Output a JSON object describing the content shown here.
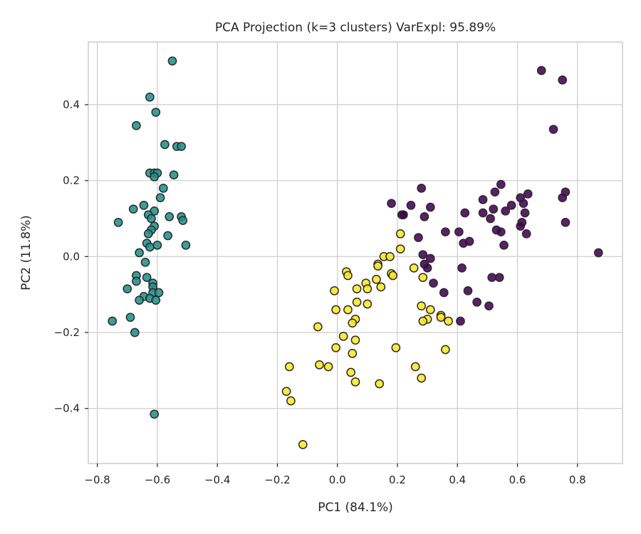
{
  "chart_data": {
    "type": "scatter",
    "title": "PCA Projection (k=3 clusters) VarExpl: 95.89%",
    "xlabel": "PC1 (84.1%)",
    "ylabel": "PC2 (11.8%)",
    "xlim": [
      -0.83,
      0.95
    ],
    "ylim": [
      -0.545,
      0.565
    ],
    "xticks": [
      -0.8,
      -0.6,
      -0.4,
      -0.2,
      0.0,
      0.2,
      0.4,
      0.6,
      0.8
    ],
    "xtick_labels": [
      "−0.8",
      "−0.6",
      "−0.4",
      "−0.2",
      "0.0",
      "0.2",
      "0.4",
      "0.6",
      "0.8"
    ],
    "yticks": [
      0.4,
      0.2,
      0.0,
      -0.2,
      -0.4
    ],
    "ytick_labels": [
      "0.4",
      "0.2",
      "0.0",
      "−0.2",
      "−0.4"
    ],
    "grid": true,
    "colors": {
      "cluster0": "#440154",
      "cluster1": "#21918c",
      "cluster2": "#fde725"
    },
    "series": [
      {
        "color_key": "cluster0",
        "points": [
          [
            0.68,
            0.49
          ],
          [
            0.75,
            0.465
          ],
          [
            0.72,
            0.335
          ],
          [
            0.87,
            0.01
          ],
          [
            0.545,
            0.19
          ],
          [
            0.525,
            0.17
          ],
          [
            0.635,
            0.165
          ],
          [
            0.76,
            0.17
          ],
          [
            0.61,
            0.155
          ],
          [
            0.75,
            0.155
          ],
          [
            0.62,
            0.14
          ],
          [
            0.485,
            0.15
          ],
          [
            0.58,
            0.135
          ],
          [
            0.28,
            0.18
          ],
          [
            0.18,
            0.14
          ],
          [
            0.245,
            0.135
          ],
          [
            0.31,
            0.13
          ],
          [
            0.52,
            0.125
          ],
          [
            0.56,
            0.12
          ],
          [
            0.215,
            0.11
          ],
          [
            0.22,
            0.11
          ],
          [
            0.29,
            0.105
          ],
          [
            0.425,
            0.115
          ],
          [
            0.485,
            0.115
          ],
          [
            0.625,
            0.115
          ],
          [
            0.51,
            0.1
          ],
          [
            0.615,
            0.09
          ],
          [
            0.61,
            0.08
          ],
          [
            0.76,
            0.09
          ],
          [
            0.53,
            0.07
          ],
          [
            0.545,
            0.065
          ],
          [
            0.36,
            0.065
          ],
          [
            0.405,
            0.065
          ],
          [
            0.63,
            0.06
          ],
          [
            0.27,
            0.05
          ],
          [
            0.44,
            0.04
          ],
          [
            0.42,
            0.035
          ],
          [
            0.555,
            0.03
          ],
          [
            0.285,
            0.005
          ],
          [
            0.31,
            -0.005
          ],
          [
            0.29,
            -0.02
          ],
          [
            0.3,
            -0.03
          ],
          [
            0.415,
            -0.03
          ],
          [
            0.515,
            -0.055
          ],
          [
            0.54,
            -0.055
          ],
          [
            0.32,
            -0.07
          ],
          [
            0.355,
            -0.095
          ],
          [
            0.435,
            -0.09
          ],
          [
            0.465,
            -0.12
          ],
          [
            0.505,
            -0.13
          ],
          [
            0.41,
            -0.17
          ]
        ]
      },
      {
        "color_key": "cluster1",
        "points": [
          [
            -0.55,
            0.515
          ],
          [
            -0.625,
            0.42
          ],
          [
            -0.605,
            0.38
          ],
          [
            -0.67,
            0.345
          ],
          [
            -0.575,
            0.295
          ],
          [
            -0.535,
            0.29
          ],
          [
            -0.52,
            0.29
          ],
          [
            -0.625,
            0.22
          ],
          [
            -0.61,
            0.22
          ],
          [
            -0.6,
            0.22
          ],
          [
            -0.545,
            0.215
          ],
          [
            -0.61,
            0.21
          ],
          [
            -0.58,
            0.18
          ],
          [
            -0.59,
            0.155
          ],
          [
            -0.645,
            0.135
          ],
          [
            -0.68,
            0.125
          ],
          [
            -0.61,
            0.12
          ],
          [
            -0.63,
            0.11
          ],
          [
            -0.56,
            0.105
          ],
          [
            -0.52,
            0.105
          ],
          [
            -0.62,
            0.1
          ],
          [
            -0.73,
            0.09
          ],
          [
            -0.515,
            0.095
          ],
          [
            -0.61,
            0.08
          ],
          [
            -0.62,
            0.07
          ],
          [
            -0.63,
            0.06
          ],
          [
            -0.565,
            0.055
          ],
          [
            -0.635,
            0.035
          ],
          [
            -0.625,
            0.025
          ],
          [
            -0.6,
            0.03
          ],
          [
            -0.505,
            0.03
          ],
          [
            -0.66,
            0.01
          ],
          [
            -0.64,
            -0.015
          ],
          [
            -0.67,
            -0.05
          ],
          [
            -0.635,
            -0.055
          ],
          [
            -0.615,
            -0.07
          ],
          [
            -0.67,
            -0.065
          ],
          [
            -0.615,
            -0.08
          ],
          [
            -0.7,
            -0.085
          ],
          [
            -0.615,
            -0.095
          ],
          [
            -0.595,
            -0.095
          ],
          [
            -0.645,
            -0.105
          ],
          [
            -0.625,
            -0.11
          ],
          [
            -0.605,
            -0.115
          ],
          [
            -0.66,
            -0.115
          ],
          [
            -0.69,
            -0.16
          ],
          [
            -0.75,
            -0.17
          ],
          [
            -0.675,
            -0.2
          ],
          [
            -0.61,
            -0.415
          ]
        ]
      },
      {
        "color_key": "cluster2",
        "points": [
          [
            0.21,
            0.06
          ],
          [
            0.155,
            0.0
          ],
          [
            0.175,
            0.0
          ],
          [
            0.21,
            0.02
          ],
          [
            0.135,
            -0.02
          ],
          [
            0.135,
            -0.025
          ],
          [
            0.255,
            -0.03
          ],
          [
            0.03,
            -0.04
          ],
          [
            0.035,
            -0.05
          ],
          [
            0.18,
            -0.045
          ],
          [
            0.285,
            -0.055
          ],
          [
            0.185,
            -0.05
          ],
          [
            0.13,
            -0.06
          ],
          [
            0.095,
            -0.07
          ],
          [
            0.145,
            -0.08
          ],
          [
            0.065,
            -0.085
          ],
          [
            0.1,
            -0.085
          ],
          [
            -0.01,
            -0.09
          ],
          [
            0.1,
            -0.125
          ],
          [
            0.065,
            -0.12
          ],
          [
            -0.005,
            -0.14
          ],
          [
            0.035,
            -0.14
          ],
          [
            0.28,
            -0.13
          ],
          [
            0.31,
            -0.14
          ],
          [
            0.345,
            -0.155
          ],
          [
            0.345,
            -0.16
          ],
          [
            0.3,
            -0.165
          ],
          [
            0.285,
            -0.17
          ],
          [
            0.37,
            -0.17
          ],
          [
            0.06,
            -0.165
          ],
          [
            0.05,
            -0.175
          ],
          [
            -0.065,
            -0.185
          ],
          [
            0.02,
            -0.21
          ],
          [
            0.06,
            -0.22
          ],
          [
            -0.005,
            -0.24
          ],
          [
            0.195,
            -0.24
          ],
          [
            0.36,
            -0.245
          ],
          [
            0.05,
            -0.255
          ],
          [
            -0.06,
            -0.285
          ],
          [
            -0.03,
            -0.29
          ],
          [
            -0.16,
            -0.29
          ],
          [
            0.26,
            -0.29
          ],
          [
            0.045,
            -0.305
          ],
          [
            0.28,
            -0.32
          ],
          [
            0.06,
            -0.33
          ],
          [
            0.14,
            -0.335
          ],
          [
            -0.17,
            -0.355
          ],
          [
            -0.155,
            -0.38
          ],
          [
            -0.115,
            -0.495
          ]
        ]
      }
    ]
  }
}
